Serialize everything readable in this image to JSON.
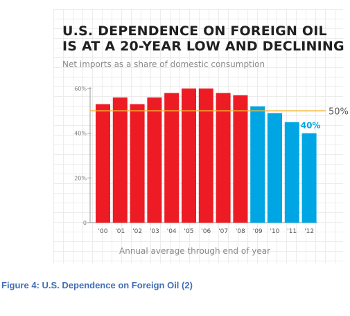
{
  "chart_data": {
    "type": "bar",
    "title": "U.S. DEPENDENCE ON FOREIGN OIL",
    "title_line2": "IS AT A 20-YEAR LOW AND DECLINING",
    "subtitle": "Net imports as a share of domestic consumption",
    "xlabel": "Annual average through end of year",
    "ylabel": "",
    "categories": [
      "'00",
      "'01",
      "'02",
      "'03",
      "'04",
      "'05",
      "'06",
      "'07",
      "'08",
      "'09",
      "'10",
      "'11",
      "'12"
    ],
    "values": [
      53,
      56,
      53,
      56,
      58,
      60,
      60,
      58,
      57,
      52,
      49,
      45,
      40
    ],
    "ylim": [
      0,
      60
    ],
    "yticks": [
      0,
      20,
      40,
      60
    ],
    "ytick_labels": [
      "0",
      "20%",
      "40%",
      "60%"
    ],
    "grid": true,
    "colors": {
      "bars_2000_2008": "#ed1c24",
      "bars_2009_2012": "#00a6e4",
      "reference_line": "#f5b335",
      "axis": "#9a9a9a"
    },
    "reference_line": {
      "value": 50,
      "label": "50%"
    },
    "annotations": [
      {
        "category": "'12",
        "label": "40%",
        "color": "#00a6e4"
      }
    ],
    "blue_from_index": 9
  },
  "caption": "Figure 4: U.S. Dependence on Foreign Oil (2)"
}
